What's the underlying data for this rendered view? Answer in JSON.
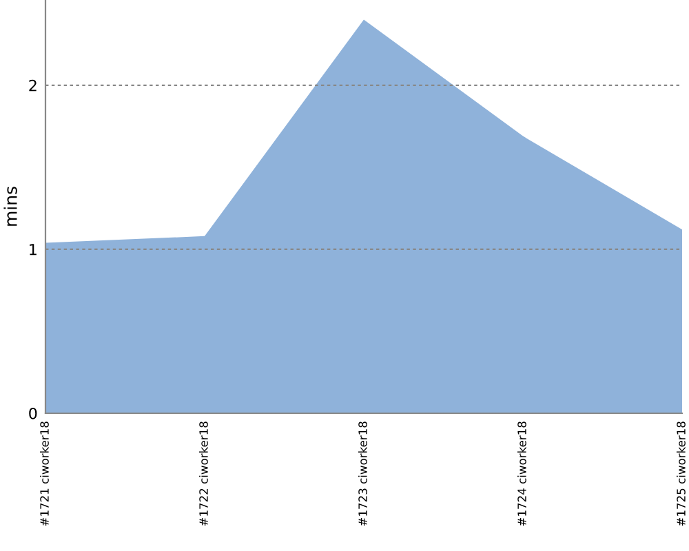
{
  "chart_data": {
    "type": "area",
    "ylabel": "mins",
    "categories": [
      "#1721 ciworker18",
      "#1722 ciworker18",
      "#1723 ciworker18",
      "#1724 ciworker18",
      "#1725 ciworker18"
    ],
    "series": [
      {
        "color": "#8fb2da",
        "values": [
          1.04,
          1.08,
          2.4,
          1.69,
          1.12
        ]
      }
    ],
    "ylim": [
      0,
      2.52
    ],
    "yticks": [
      0,
      1,
      2
    ],
    "grid": "y"
  }
}
